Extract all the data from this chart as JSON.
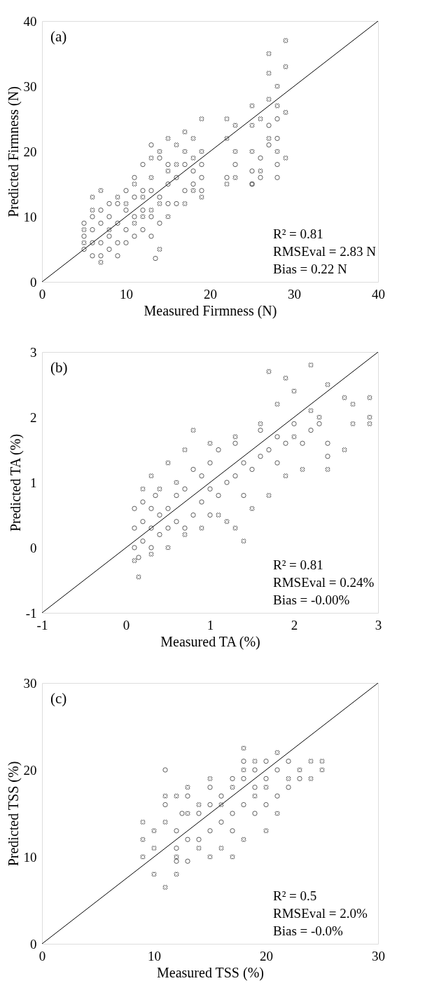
{
  "chart_data": [
    {
      "type": "scatter",
      "xlabel": "Measured Firmness (N)",
      "ylabel": "Predicted Firmness (N)",
      "xlim": [
        0,
        40
      ],
      "ylim": [
        0,
        40
      ],
      "xticks": [
        0,
        10,
        20,
        30,
        40
      ],
      "yticks": [
        0,
        10,
        20,
        30,
        40
      ],
      "annotations": [
        "(a)",
        "R² = 0.81",
        "RMSEval = 2.83 N",
        "Bias = 0.22 N"
      ],
      "series": [
        {
          "marker": "circle",
          "color": "#000000",
          "x": [
            5,
            5,
            5,
            6,
            6,
            6,
            6,
            7,
            7,
            7,
            7,
            8,
            8,
            8,
            8,
            9,
            9,
            9,
            9,
            10,
            10,
            10,
            10,
            11,
            11,
            11,
            11,
            12,
            12,
            12,
            12,
            13,
            13,
            13,
            13.5,
            14,
            14,
            14,
            15,
            15,
            15,
            16,
            16,
            17,
            17,
            18,
            18,
            19,
            19,
            19,
            22,
            23,
            25,
            25,
            26,
            26,
            27,
            27,
            28,
            28,
            28,
            28,
            13
          ],
          "values": [
            5,
            7,
            9,
            4,
            6,
            8,
            10,
            4,
            6,
            9,
            11,
            5,
            7,
            10,
            12,
            4,
            6,
            9,
            12,
            6,
            8,
            11,
            14,
            7,
            10,
            13,
            16,
            8,
            11,
            14,
            18,
            7,
            10,
            14,
            3.6,
            9,
            13,
            19,
            12,
            15,
            18,
            12,
            16,
            14,
            18,
            15,
            17,
            14,
            16,
            18,
            16,
            18,
            15,
            17,
            16,
            19,
            21,
            24,
            18,
            22,
            25,
            16,
            21
          ]
        },
        {
          "marker": "cross",
          "color": "#000000",
          "x": [
            5,
            5,
            6,
            6,
            7,
            7,
            8,
            9,
            10,
            11,
            11,
            12,
            12,
            13,
            13,
            13,
            14,
            14,
            14,
            15,
            15,
            15,
            16,
            16,
            17,
            17,
            17,
            18,
            18,
            18,
            19,
            19,
            19,
            22,
            22,
            22,
            23,
            23,
            23,
            25,
            25,
            25,
            25,
            26,
            26,
            27,
            27,
            27,
            27,
            28,
            28,
            28,
            29,
            29,
            29,
            29
          ],
          "values": [
            6,
            8,
            11,
            13,
            3,
            14,
            8,
            13,
            12,
            9,
            15,
            10,
            13,
            11,
            16,
            19,
            5,
            12,
            20,
            10,
            17,
            22,
            18,
            21,
            12,
            20,
            23,
            14,
            19,
            22,
            13,
            20,
            25,
            15,
            22,
            25,
            16,
            20,
            24,
            15,
            20,
            24,
            27,
            17,
            25,
            22,
            28,
            32,
            35,
            20,
            27,
            30,
            37,
            19,
            26,
            33
          ]
        },
        {
          "type": "line",
          "color": "#000000",
          "x": [
            0,
            40
          ],
          "values": [
            0,
            40
          ]
        }
      ]
    },
    {
      "type": "scatter",
      "xlabel": "Measured TA (%)",
      "ylabel": "Predicted TA (%)",
      "xlim": [
        -1,
        3
      ],
      "ylim": [
        -1,
        3
      ],
      "xticks": [
        -1,
        0,
        1,
        2,
        3
      ],
      "yticks": [
        -1,
        0,
        1,
        2,
        3
      ],
      "annotations": [
        "(b)",
        "R² = 0.81",
        "RMSEval = 0.24%",
        "Bias = -0.00%"
      ],
      "series": [
        {
          "marker": "circle",
          "color": "#000000",
          "x": [
            0.1,
            0.1,
            0.1,
            0.15,
            0.2,
            0.2,
            0.2,
            0.3,
            0.3,
            0.3,
            0.35,
            0.4,
            0.4,
            0.5,
            0.5,
            0.6,
            0.6,
            0.7,
            0.7,
            0.8,
            0.8,
            0.9,
            0.9,
            1.0,
            1.0,
            1.0,
            1.1,
            1.1,
            1.2,
            1.3,
            1.3,
            1.4,
            1.4,
            1.5,
            1.6,
            1.6,
            1.7,
            1.8,
            1.8,
            1.9,
            2.0,
            2.1,
            2.2,
            2.3,
            2.4,
            2.4
          ],
          "values": [
            0,
            0.3,
            0.6,
            -0.15,
            0.1,
            0.4,
            0.7,
            0,
            0.3,
            0.6,
            0.8,
            0.2,
            0.5,
            0.3,
            0.6,
            0.4,
            0.8,
            0.3,
            0.9,
            0.5,
            1.2,
            0.7,
            1.1,
            0.5,
            0.9,
            1.3,
            0.8,
            1.5,
            1.0,
            1.1,
            1.6,
            0.8,
            1.3,
            1.2,
            1.4,
            1.8,
            1.5,
            1.3,
            1.7,
            1.6,
            1.9,
            1.6,
            1.8,
            1.9,
            1.6,
            1.4
          ]
        },
        {
          "marker": "cross",
          "color": "#000000",
          "x": [
            0.1,
            0.15,
            0.2,
            0.3,
            0.3,
            0.4,
            0.5,
            0.5,
            0.6,
            0.7,
            0.7,
            0.8,
            0.9,
            1.0,
            1.1,
            1.2,
            1.3,
            1.3,
            1.4,
            1.5,
            1.6,
            1.7,
            1.7,
            1.8,
            1.9,
            1.9,
            2.0,
            2.0,
            2.1,
            2.2,
            2.3,
            2.4,
            2.4,
            2.6,
            2.6,
            2.7,
            2.9,
            2.9,
            2.9,
            2.2,
            2.7
          ],
          "values": [
            -0.2,
            -0.45,
            0.9,
            1.1,
            -0.1,
            0.9,
            1.3,
            0,
            1.0,
            1.5,
            0.2,
            1.8,
            0.3,
            1.6,
            0.5,
            0.4,
            0.3,
            1.7,
            0.1,
            0.6,
            1.9,
            0.8,
            2.7,
            2.2,
            2.6,
            1.1,
            1.7,
            2.4,
            1.2,
            2.1,
            2.0,
            2.5,
            1.2,
            1.5,
            2.3,
            2.2,
            2.0,
            2.3,
            1.9,
            2.8,
            1.9
          ]
        },
        {
          "type": "line",
          "color": "#000000",
          "x": [
            -1,
            3
          ],
          "values": [
            -1,
            3
          ]
        }
      ]
    },
    {
      "type": "scatter",
      "xlabel": "Measured TSS (%)",
      "ylabel": "Predicted TSS (%)",
      "xlim": [
        0,
        30
      ],
      "ylim": [
        0,
        30
      ],
      "xticks": [
        0,
        10,
        20,
        30
      ],
      "yticks": [
        0,
        10,
        20,
        30
      ],
      "annotations": [
        "(c)",
        "R² = 0.5",
        "RMSEval = 2.0%",
        "Bias = -0.0%"
      ],
      "series": [
        {
          "marker": "circle",
          "color": "#000000",
          "x": [
            11,
            11,
            12,
            12,
            12,
            12.5,
            13,
            13,
            14,
            14,
            15,
            15,
            15,
            16,
            16,
            17,
            17,
            17,
            18,
            18,
            18,
            19,
            19,
            19,
            20,
            20,
            20,
            21,
            21,
            22,
            22,
            23,
            13
          ],
          "values": [
            20,
            16,
            13,
            11,
            9.5,
            15,
            12,
            17,
            15,
            12,
            13,
            16,
            18,
            14,
            17,
            15,
            19,
            13,
            16,
            19,
            21,
            15,
            18,
            20,
            16,
            19,
            21,
            17,
            20,
            18,
            21,
            19,
            9.5
          ]
        },
        {
          "marker": "cross",
          "color": "#000000",
          "x": [
            9,
            9,
            9,
            10,
            10,
            10,
            11,
            11,
            11,
            12,
            12,
            12,
            13,
            13,
            14,
            14,
            15,
            15,
            16,
            16,
            17,
            17,
            18,
            18,
            18,
            19,
            19,
            20,
            20,
            21,
            21,
            22,
            23,
            24,
            24,
            25,
            25
          ],
          "values": [
            10,
            12,
            14,
            8,
            11,
            13,
            6.5,
            14,
            17,
            8,
            10,
            17,
            18,
            15,
            11,
            16,
            10,
            19,
            11,
            16,
            10,
            18,
            12,
            20,
            22.5,
            17,
            21,
            13,
            18,
            15,
            22,
            19,
            20,
            19,
            21,
            20,
            21
          ]
        },
        {
          "type": "line",
          "color": "#000000",
          "x": [
            0,
            30
          ],
          "values": [
            0,
            30
          ]
        }
      ]
    }
  ]
}
